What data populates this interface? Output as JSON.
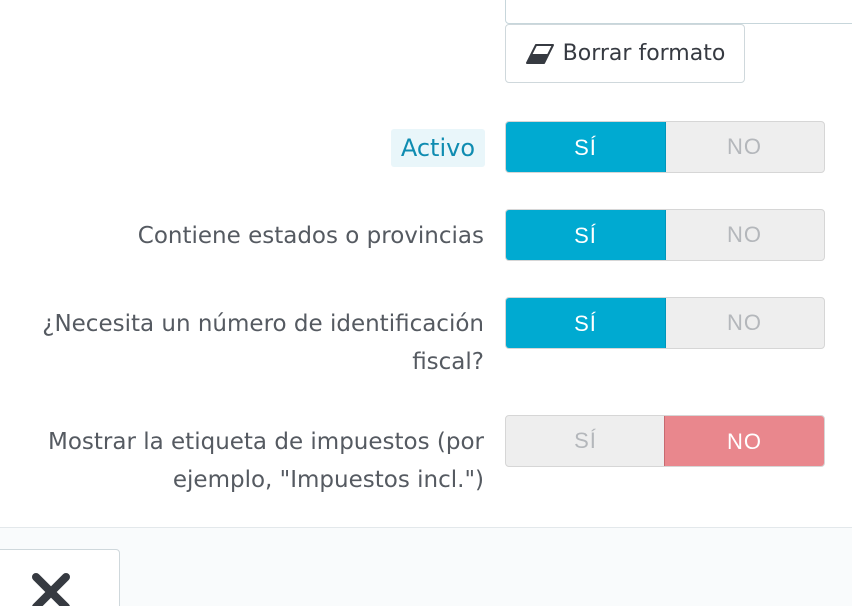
{
  "editor": {
    "clear_format_label": "Borrar formato",
    "clear_format_icon": "eraser-icon"
  },
  "fields": {
    "active": {
      "label": "Activo",
      "yes": "SÍ",
      "no": "NO",
      "value": "yes"
    },
    "contains_states": {
      "label": "Contiene estados o provincias",
      "yes": "SÍ",
      "no": "NO",
      "value": "yes"
    },
    "need_tax_id": {
      "label_line1": "¿Necesita un número de identificación",
      "label_line2": "fiscal?",
      "yes": "SÍ",
      "no": "NO",
      "value": "yes"
    },
    "show_tax_label": {
      "label_line1": "Mostrar la etiqueta de impuestos (por",
      "label_line2": "ejemplo, \"Impuestos incl.\")",
      "yes": "SÍ",
      "no": "NO",
      "value": "no"
    }
  },
  "footer": {
    "cancel_icon": "close-icon"
  },
  "colors": {
    "yes_active": "#00aad1",
    "no_active": "#e9878d",
    "inactive": "#eeeeee",
    "active_badge_bg": "#e9f6fa",
    "active_badge_text": "#0f8cb1"
  }
}
